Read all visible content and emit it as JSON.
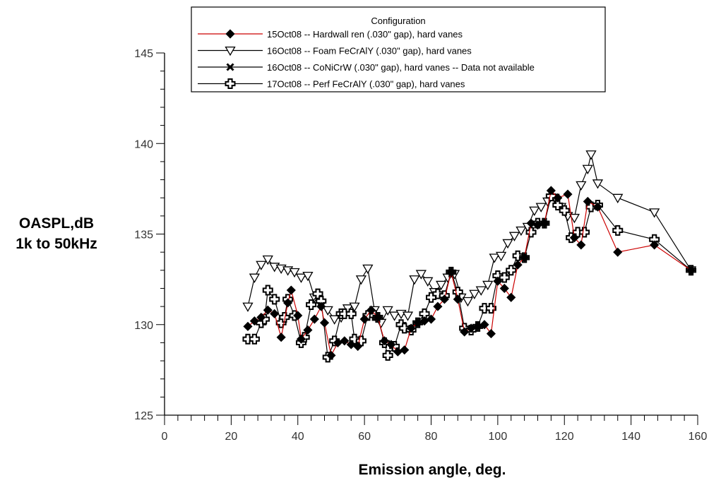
{
  "chart_data": {
    "type": "line",
    "title": "",
    "xlabel": "Emission angle, deg.",
    "ylabel_lines": [
      "OASPL,dB",
      "1k to 50kHz"
    ],
    "xlim": [
      0,
      160
    ],
    "ylim": [
      125,
      145
    ],
    "x_ticks": [
      0,
      20,
      40,
      60,
      80,
      100,
      120,
      140,
      160
    ],
    "y_ticks": [
      125,
      130,
      135,
      140,
      145
    ],
    "grid": false,
    "legend": {
      "title": "Configuration",
      "position": "top-center",
      "entries": [
        {
          "label": "15Oct08 -- Hardwall ren (.030\" gap), hard vanes",
          "color": "#cc0000",
          "marker": "diamond"
        },
        {
          "label": "16Oct08 -- Foam FeCrAlY (.030\" gap), hard vanes",
          "color": "#000000",
          "marker": "triangle-down-open"
        },
        {
          "label": "16Oct08 -- CoNiCrW (.030\" gap), hard vanes -- Data not available",
          "color": "#000000",
          "marker": "x"
        },
        {
          "label": "17Oct08 -- Perf FeCrAlY (.030\" gap), hard vanes",
          "color": "#000000",
          "marker": "cross"
        }
      ]
    },
    "series": [
      {
        "name": "15Oct08 -- Hardwall ren (.030\" gap), hard vanes",
        "color": "#cc0000",
        "marker": "diamond",
        "x": [
          25,
          27,
          29,
          31,
          33,
          35,
          37,
          38,
          40,
          41,
          43,
          45,
          47,
          48,
          50,
          52,
          54,
          56,
          58,
          60,
          62,
          64,
          66,
          68,
          70,
          72,
          74,
          76,
          78,
          80,
          82,
          84,
          86,
          88,
          90,
          92,
          94,
          96,
          98,
          100,
          102,
          104,
          106,
          108,
          110,
          112,
          114,
          116,
          118,
          121,
          123,
          125,
          127,
          130,
          136,
          147,
          158
        ],
        "y": [
          129.9,
          130.2,
          130.4,
          130.8,
          130.6,
          129.3,
          131.2,
          131.9,
          130.5,
          129.2,
          129.7,
          130.3,
          131.0,
          130.1,
          128.3,
          129.0,
          129.1,
          128.9,
          128.8,
          130.3,
          130.8,
          130.4,
          129.1,
          128.9,
          128.5,
          128.6,
          129.8,
          130.1,
          130.2,
          130.3,
          131.0,
          131.4,
          132.9,
          131.4,
          129.6,
          129.8,
          129.9,
          130.0,
          129.5,
          132.4,
          132.0,
          131.5,
          133.3,
          133.7,
          135.6,
          135.5,
          135.6,
          137.4,
          137.0,
          137.2,
          134.8,
          134.4,
          136.8,
          136.5,
          134.0,
          134.4,
          133.0
        ]
      },
      {
        "name": "16Oct08 -- Foam FeCrAlY (.030\" gap), hard vanes",
        "color": "#000000",
        "marker": "triangle-down-open",
        "x": [
          25,
          27,
          29,
          31,
          33,
          35,
          37,
          39,
          41,
          43,
          45,
          47,
          49,
          51,
          53,
          55,
          57,
          59,
          61,
          63,
          65,
          67,
          69,
          71,
          73,
          75,
          77,
          79,
          81,
          83,
          85,
          87,
          89,
          91,
          93,
          95,
          97,
          99,
          101,
          103,
          105,
          107,
          109,
          111,
          113,
          115,
          117,
          119,
          121,
          123,
          125,
          127,
          128,
          130,
          136,
          147,
          158
        ],
        "y": [
          131.0,
          132.6,
          133.3,
          133.6,
          133.2,
          133.1,
          133.0,
          132.9,
          132.6,
          132.7,
          131.5,
          131.1,
          130.8,
          130.3,
          130.4,
          130.9,
          131.0,
          132.5,
          133.1,
          130.8,
          130.1,
          130.8,
          130.5,
          130.6,
          130.5,
          132.5,
          132.8,
          132.4,
          131.8,
          132.2,
          132.6,
          132.8,
          131.5,
          131.3,
          131.7,
          131.9,
          132.2,
          133.7,
          133.8,
          134.5,
          134.9,
          135.2,
          135.4,
          136.3,
          136.5,
          136.8,
          137.0,
          136.5,
          136.0,
          135.9,
          137.7,
          138.6,
          139.4,
          137.8,
          137.0,
          136.2,
          133.0
        ]
      },
      {
        "name": "17Oct08 -- Perf FeCrAlY (.030\" gap), hard vanes",
        "color": "#000000",
        "marker": "cross",
        "x": [
          25,
          27,
          29,
          30,
          31,
          33,
          35,
          36,
          37,
          39,
          41,
          42,
          44,
          46,
          47,
          49,
          51,
          53,
          54,
          56,
          57,
          59,
          61,
          63,
          64,
          66,
          67,
          69,
          71,
          72,
          74,
          76,
          78,
          80,
          82,
          84,
          86,
          88,
          90,
          92,
          94,
          96,
          98,
          100,
          102,
          104,
          106,
          108,
          110,
          112,
          114,
          116,
          118,
          120,
          122,
          124,
          126,
          128,
          130,
          136,
          147,
          158
        ],
        "y": [
          129.2,
          129.2,
          130.1,
          130.3,
          131.9,
          131.4,
          130.1,
          130.4,
          131.4,
          130.5,
          129.0,
          129.3,
          131.1,
          131.7,
          131.3,
          128.2,
          129.1,
          130.6,
          130.6,
          130.6,
          129.2,
          129.1,
          130.5,
          130.5,
          130.4,
          129.0,
          128.3,
          128.8,
          130.0,
          129.8,
          129.7,
          130.1,
          130.6,
          131.5,
          131.7,
          131.6,
          132.9,
          131.8,
          129.8,
          129.7,
          129.9,
          130.9,
          130.9,
          132.7,
          132.6,
          133.0,
          133.8,
          133.7,
          135.1,
          135.6,
          135.6,
          137.1,
          136.6,
          136.3,
          134.8,
          135.1,
          135.1,
          136.5,
          136.6,
          135.2,
          134.7,
          133.0
        ]
      }
    ]
  }
}
